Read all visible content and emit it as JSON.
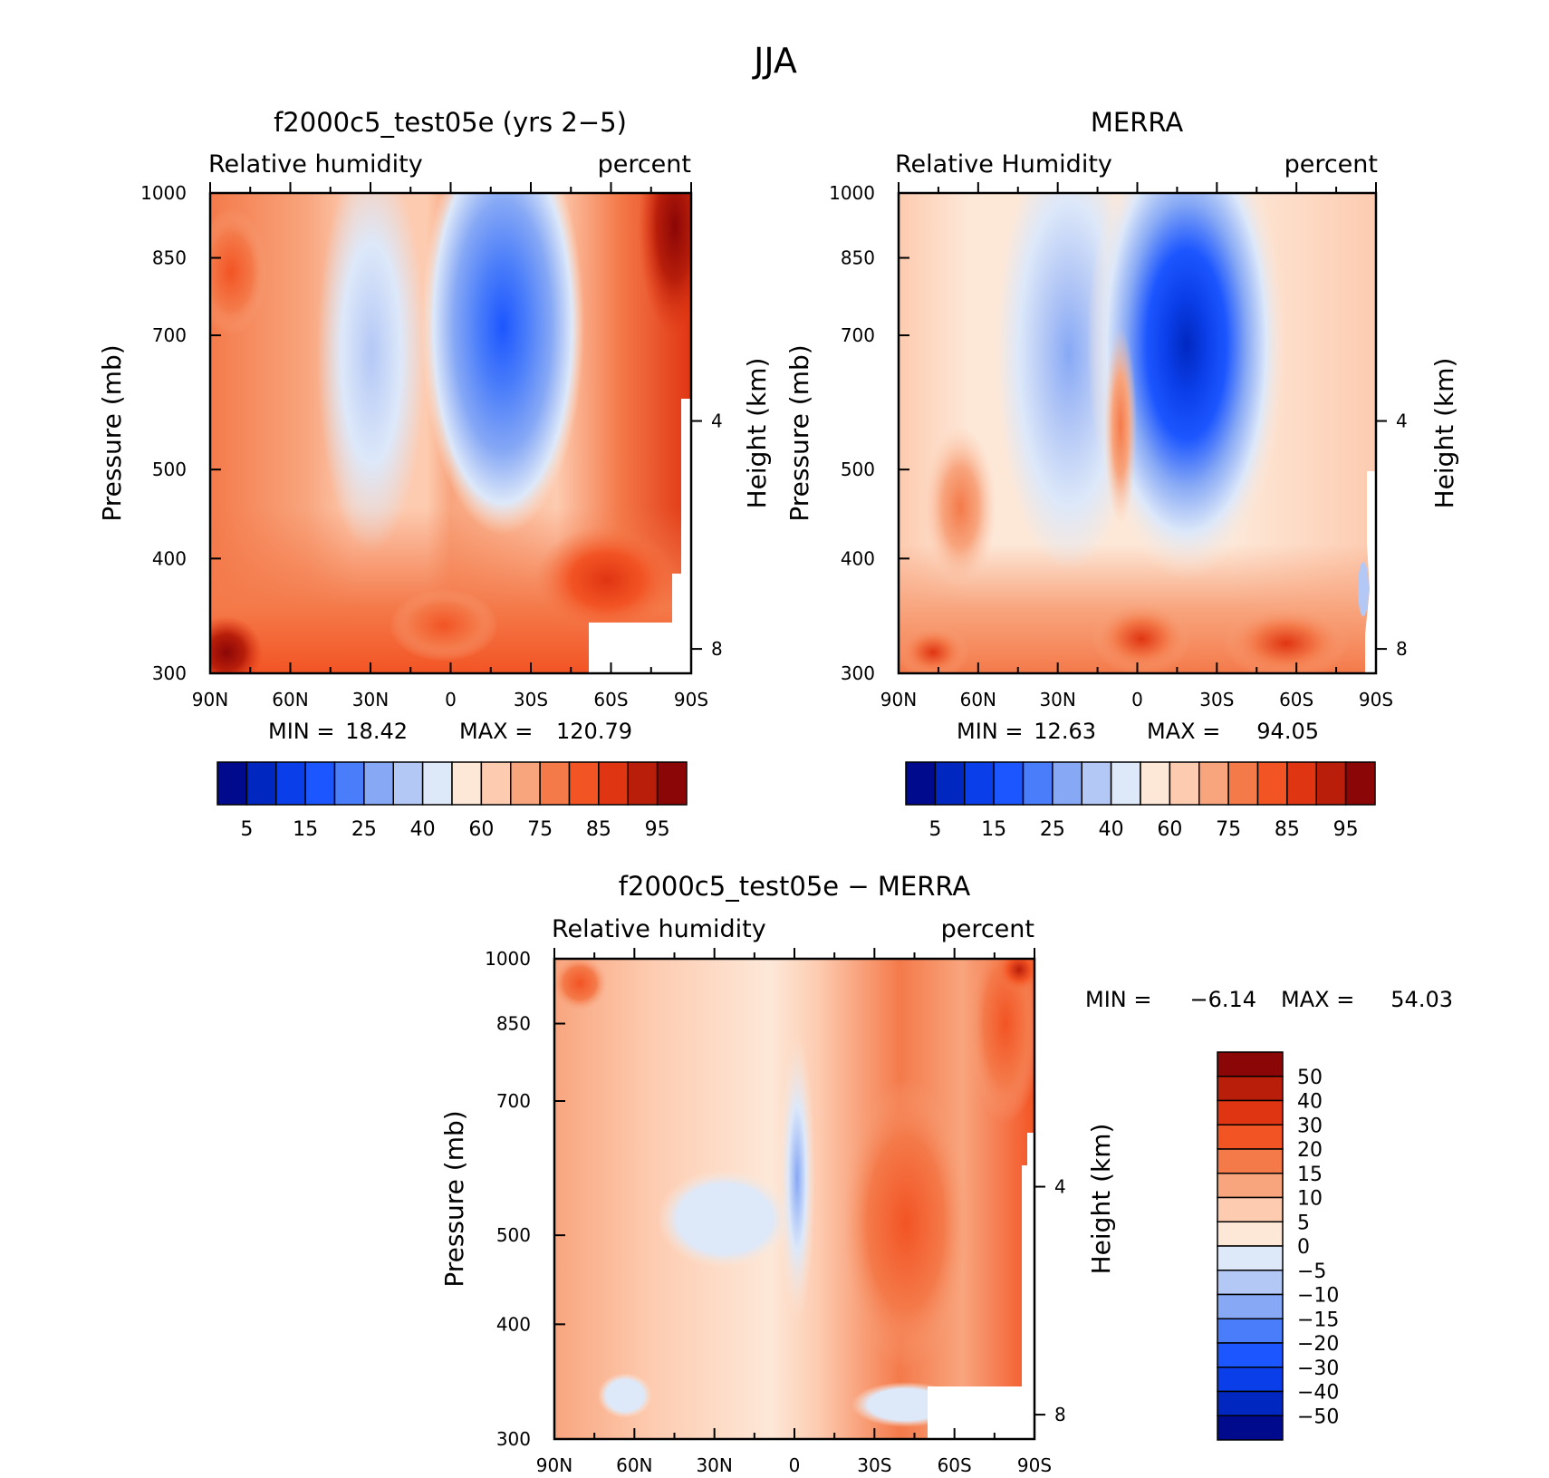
{
  "figure": {
    "title": "JJA"
  },
  "chart_data": [
    {
      "type": "heatmap",
      "title": "f2000c5_test05e (yrs 2−5)",
      "left_label": "Relative humidity",
      "right_label": "percent",
      "xlabel": "",
      "ylabel": "Pressure (mb)",
      "y2label": "Height (km)",
      "x_ticks": [
        "90N",
        "60N",
        "30N",
        "0",
        "30S",
        "60S",
        "90S"
      ],
      "y_ticks": [
        "300",
        "400",
        "500",
        "700",
        "850",
        "1000"
      ],
      "y2_ticks": [
        "8",
        "4"
      ],
      "ylim": [
        1000,
        300
      ],
      "stats": {
        "min_label": "MIN =",
        "min": "18.42",
        "max_label": "MAX =",
        "max": "120.79"
      },
      "colorbar": {
        "orientation": "horizontal",
        "labels": [
          "5",
          "15",
          "25",
          "40",
          "60",
          "75",
          "85",
          "95"
        ],
        "colors": [
          "#000a8c",
          "#0028c0",
          "#0a3ee8",
          "#1c56ff",
          "#4a7dfa",
          "#86a8f5",
          "#b4c8f6",
          "#dde8f9",
          "#fde8d8",
          "#fdcbb0",
          "#f8a57e",
          "#f47a4a",
          "#f35424",
          "#e03512",
          "#b81e0a",
          "#8b0606"
        ]
      }
    },
    {
      "type": "heatmap",
      "title": "MERRA",
      "left_label": "Relative Humidity",
      "right_label": "percent",
      "xlabel": "",
      "ylabel": "Pressure (mb)",
      "y2label": "Height (km)",
      "x_ticks": [
        "90N",
        "60N",
        "30N",
        "0",
        "30S",
        "60S",
        "90S"
      ],
      "y_ticks": [
        "300",
        "400",
        "500",
        "700",
        "850",
        "1000"
      ],
      "y2_ticks": [
        "8",
        "4"
      ],
      "ylim": [
        1000,
        300
      ],
      "stats": {
        "min_label": "MIN =",
        "min": "12.63",
        "max_label": "MAX =",
        "max": "94.05"
      },
      "colorbar": {
        "orientation": "horizontal",
        "labels": [
          "5",
          "15",
          "25",
          "40",
          "60",
          "75",
          "85",
          "95"
        ],
        "colors": [
          "#000a8c",
          "#0028c0",
          "#0a3ee8",
          "#1c56ff",
          "#4a7dfa",
          "#86a8f5",
          "#b4c8f6",
          "#dde8f9",
          "#fde8d8",
          "#fdcbb0",
          "#f8a57e",
          "#f47a4a",
          "#f35424",
          "#e03512",
          "#b81e0a",
          "#8b0606"
        ]
      }
    },
    {
      "type": "heatmap",
      "title": "f2000c5_test05e − MERRA",
      "left_label": "Relative humidity",
      "right_label": "percent",
      "xlabel": "",
      "ylabel": "Pressure (mb)",
      "y2label": "Height (km)",
      "x_ticks": [
        "90N",
        "60N",
        "30N",
        "0",
        "30S",
        "60S",
        "90S"
      ],
      "y_ticks": [
        "300",
        "400",
        "500",
        "700",
        "850",
        "1000"
      ],
      "y2_ticks": [
        "8",
        "4"
      ],
      "ylim": [
        1000,
        300
      ],
      "stats": {
        "min_label": "MIN =",
        "min": "−6.14",
        "max_label": "MAX =",
        "max": "54.03"
      },
      "colorbar": {
        "orientation": "vertical",
        "labels": [
          "50",
          "40",
          "30",
          "20",
          "15",
          "10",
          "5",
          "0",
          "−5",
          "−10",
          "−15",
          "−20",
          "−30",
          "−40",
          "−50"
        ],
        "colors": [
          "#8b0606",
          "#b81e0a",
          "#e03512",
          "#f35424",
          "#f47a4a",
          "#f8a57e",
          "#fdcbb0",
          "#fde8d8",
          "#dde8f9",
          "#b4c8f6",
          "#86a8f5",
          "#4a7dfa",
          "#1c56ff",
          "#0a3ee8",
          "#0028c0",
          "#000a8c"
        ]
      }
    }
  ]
}
